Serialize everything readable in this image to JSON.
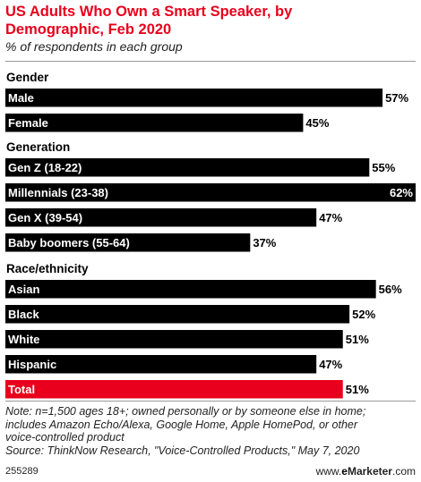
{
  "title": "US Adults Who Own a Smart Speaker, by Demographic, Feb 2020",
  "subtitle": "% of respondents in each group",
  "note_lines": [
    "Note: n=1,500 ages 18+; owned personally or by someone else in home;",
    "includes Amazon Echo/Alexa, Google Home, Apple HomePod, or other",
    "voice-controlled product",
    "Source: ThinkNow Research, \"Voice-Controlled Products,\" May 7, 2020"
  ],
  "chart_id": "255289",
  "brand": {
    "prefix": "www.",
    "e": "e",
    "main": "Marketer",
    "suffix": ".com"
  },
  "colors": {
    "bar": "#000000",
    "highlight": "#e8001c",
    "label_on_bar": "#ffffff",
    "title": "#e8001c"
  },
  "chart_data": {
    "type": "bar",
    "orientation": "horizontal",
    "title": "US Adults Who Own a Smart Speaker, by Demographic, Feb 2020",
    "subtitle": "% of respondents in each group",
    "unit": "%",
    "xlim": [
      0,
      62
    ],
    "groups": [
      {
        "name": "Gender",
        "items": [
          {
            "label": "Male",
            "value": 57
          },
          {
            "label": "Female",
            "value": 45
          }
        ]
      },
      {
        "name": "Generation",
        "items": [
          {
            "label": "Gen Z (18-22)",
            "value": 55
          },
          {
            "label": "Millennials (23-38)",
            "value": 62
          },
          {
            "label": "Gen X (39-54)",
            "value": 47
          },
          {
            "label": "Baby boomers (55-64)",
            "value": 37
          }
        ]
      },
      {
        "name": "Race/ethnicity",
        "items": [
          {
            "label": "Asian",
            "value": 56
          },
          {
            "label": "Black",
            "value": 52
          },
          {
            "label": "White",
            "value": 51
          },
          {
            "label": "Hispanic",
            "value": 47
          },
          {
            "label": "Total",
            "value": 51,
            "highlight": true
          }
        ]
      }
    ]
  }
}
